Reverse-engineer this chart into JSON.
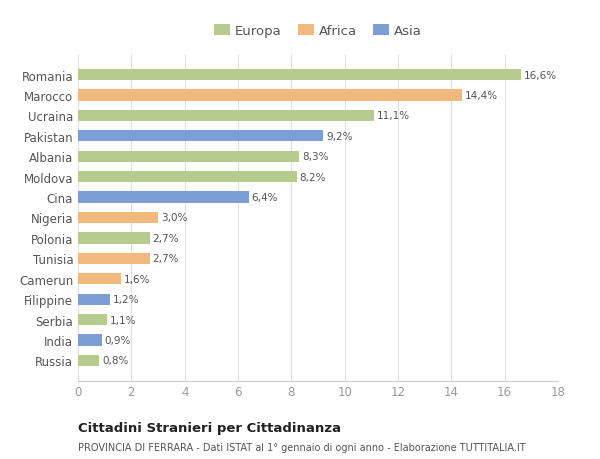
{
  "countries": [
    "Romania",
    "Marocco",
    "Ucraina",
    "Pakistan",
    "Albania",
    "Moldova",
    "Cina",
    "Nigeria",
    "Polonia",
    "Tunisia",
    "Camerun",
    "Filippine",
    "Serbia",
    "India",
    "Russia"
  ],
  "values": [
    16.6,
    14.4,
    11.1,
    9.2,
    8.3,
    8.2,
    6.4,
    3.0,
    2.7,
    2.7,
    1.6,
    1.2,
    1.1,
    0.9,
    0.8
  ],
  "labels": [
    "16,6%",
    "14,4%",
    "11,1%",
    "9,2%",
    "8,3%",
    "8,2%",
    "6,4%",
    "3,0%",
    "2,7%",
    "2,7%",
    "1,6%",
    "1,2%",
    "1,1%",
    "0,9%",
    "0,8%"
  ],
  "continents": [
    "Europa",
    "Africa",
    "Europa",
    "Asia",
    "Europa",
    "Europa",
    "Asia",
    "Africa",
    "Europa",
    "Africa",
    "Africa",
    "Asia",
    "Europa",
    "Asia",
    "Europa"
  ],
  "colors": {
    "Europa": "#b5cc8e",
    "Africa": "#f2b97e",
    "Asia": "#7b9fd4"
  },
  "legend_labels": [
    "Europa",
    "Africa",
    "Asia"
  ],
  "xlim": [
    0,
    18
  ],
  "xticks": [
    0,
    2,
    4,
    6,
    8,
    10,
    12,
    14,
    16,
    18
  ],
  "title": "Cittadini Stranieri per Cittadinanza",
  "subtitle": "PROVINCIA DI FERRARA - Dati ISTAT al 1° gennaio di ogni anno - Elaborazione TUTTITALIA.IT",
  "bg_color": "#ffffff",
  "bar_height": 0.55
}
